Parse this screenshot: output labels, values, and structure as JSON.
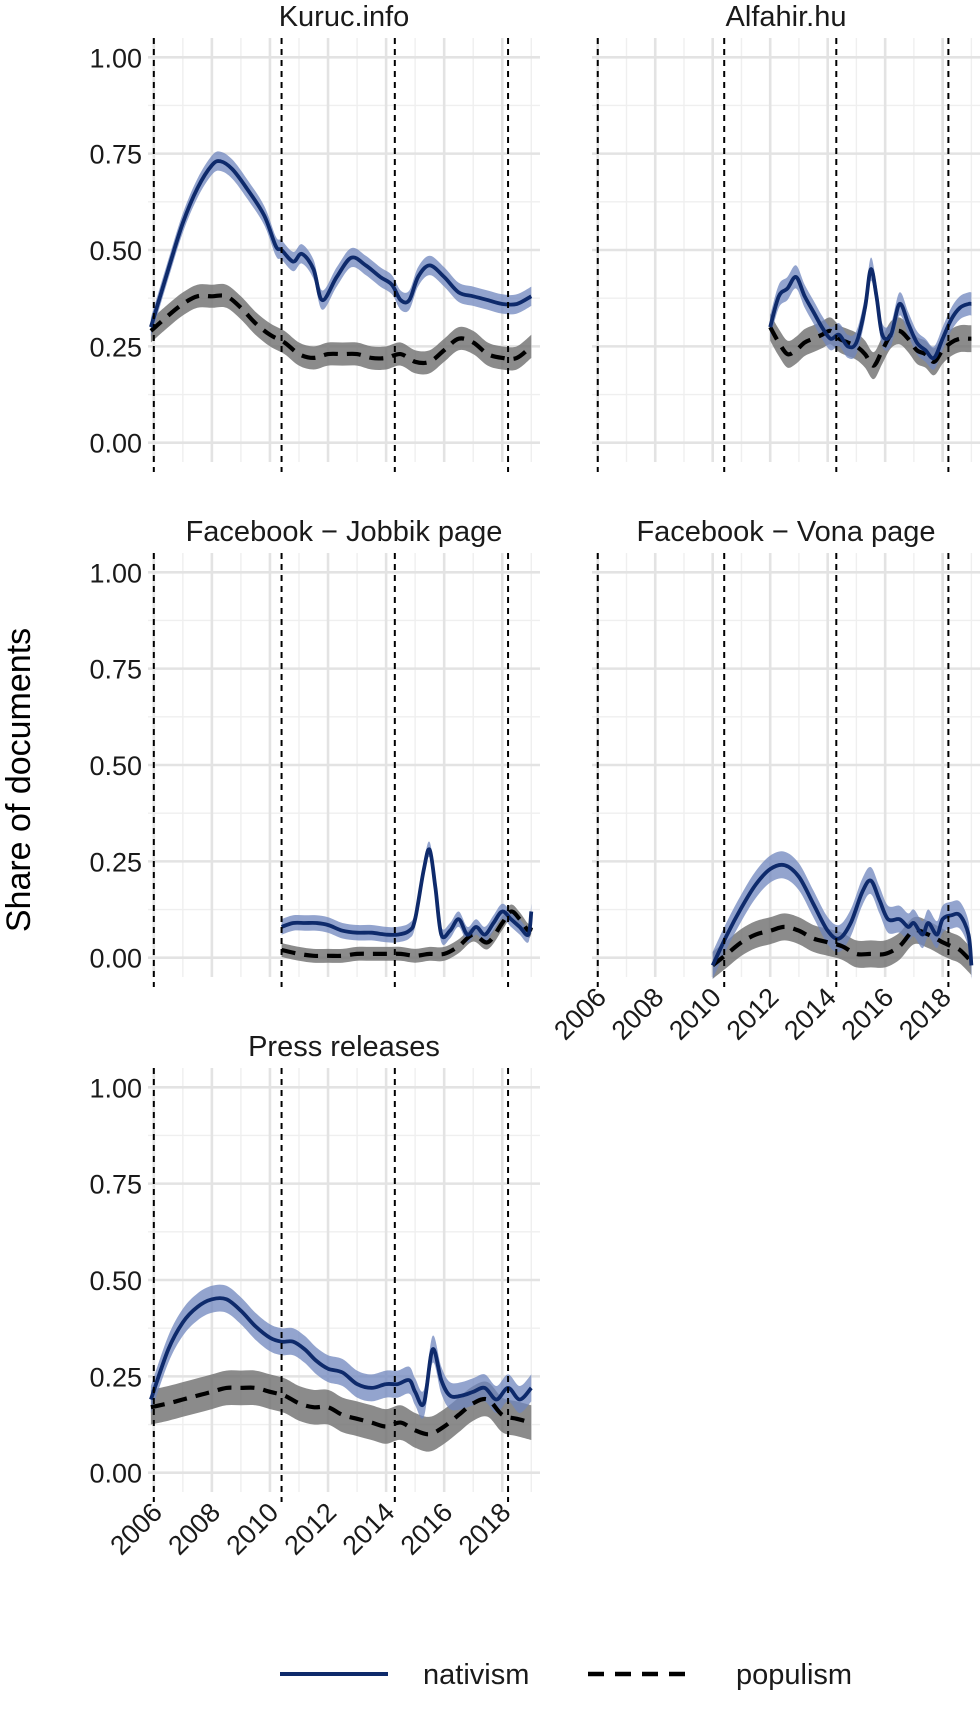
{
  "chart_data": {
    "type": "line",
    "ylabel": "Share of documents",
    "xlabel": "",
    "xlim": [
      2005.8,
      2019.3
    ],
    "ylim": [
      0,
      1.0
    ],
    "x_ticks": [
      "2006",
      "2008",
      "2010",
      "2012",
      "2014",
      "2016",
      "2018"
    ],
    "y_ticks": [
      "0.00",
      "0.25",
      "0.50",
      "0.75",
      "1.00"
    ],
    "reference_lines_x": [
      2006.0,
      2010.4,
      2014.3,
      2018.2
    ],
    "grid": true,
    "legend": {
      "position": "bottom",
      "items": [
        {
          "label": "nativism",
          "color": "#0e2a6b",
          "style": "solid"
        },
        {
          "label": "populism",
          "color": "#000000",
          "style": "dashed"
        }
      ]
    },
    "colors": {
      "nativism": "#0e2a6b",
      "nativism_band": "#6f86bd",
      "populism": "#000000",
      "populism_band": "#6e6e6e"
    },
    "panels": [
      {
        "title": "Kuruc.info",
        "series": [
          {
            "name": "nativism",
            "x": [
              2005.9,
              2006.5,
              2007.0,
              2007.5,
              2008.0,
              2008.3,
              2008.7,
              2009.2,
              2009.8,
              2010.2,
              2010.4,
              2010.8,
              2011.1,
              2011.5,
              2011.8,
              2012.3,
              2012.8,
              2013.3,
              2013.8,
              2014.2,
              2014.5,
              2014.8,
              2015.1,
              2015.5,
              2016.0,
              2016.5,
              2017.0,
              2017.5,
              2018.0,
              2018.5,
              2019.0
            ],
            "values": [
              0.3,
              0.45,
              0.57,
              0.66,
              0.72,
              0.73,
              0.71,
              0.66,
              0.59,
              0.51,
              0.5,
              0.47,
              0.49,
              0.45,
              0.37,
              0.43,
              0.48,
              0.46,
              0.43,
              0.41,
              0.37,
              0.37,
              0.43,
              0.46,
              0.43,
              0.39,
              0.38,
              0.37,
              0.36,
              0.36,
              0.38
            ],
            "band": 0.025
          },
          {
            "name": "populism",
            "x": [
              2005.9,
              2006.5,
              2007.0,
              2007.5,
              2008.0,
              2008.5,
              2009.0,
              2009.5,
              2010.0,
              2010.5,
              2011.0,
              2011.5,
              2012.0,
              2012.5,
              2013.0,
              2013.5,
              2014.0,
              2014.5,
              2015.0,
              2015.5,
              2016.0,
              2016.5,
              2017.0,
              2017.5,
              2018.0,
              2018.5,
              2019.0
            ],
            "values": [
              0.29,
              0.33,
              0.36,
              0.38,
              0.38,
              0.38,
              0.35,
              0.31,
              0.28,
              0.26,
              0.23,
              0.22,
              0.23,
              0.23,
              0.23,
              0.22,
              0.22,
              0.23,
              0.21,
              0.21,
              0.24,
              0.27,
              0.26,
              0.23,
              0.22,
              0.22,
              0.25
            ],
            "band": 0.03
          }
        ]
      },
      {
        "title": "Alfahir.hu",
        "series": [
          {
            "name": "nativism",
            "x": [
              2012.0,
              2012.3,
              2012.6,
              2012.9,
              2013.2,
              2013.5,
              2013.8,
              2014.1,
              2014.4,
              2014.7,
              2015.0,
              2015.3,
              2015.5,
              2015.7,
              2015.9,
              2016.2,
              2016.5,
              2016.8,
              2017.1,
              2017.4,
              2017.7,
              2018.0,
              2018.3,
              2018.6,
              2018.9,
              2019.0
            ],
            "values": [
              0.3,
              0.38,
              0.4,
              0.43,
              0.38,
              0.34,
              0.3,
              0.27,
              0.28,
              0.25,
              0.26,
              0.35,
              0.45,
              0.38,
              0.28,
              0.28,
              0.36,
              0.31,
              0.26,
              0.24,
              0.22,
              0.27,
              0.32,
              0.35,
              0.36,
              0.36
            ],
            "band": 0.03
          },
          {
            "name": "populism",
            "x": [
              2012.0,
              2012.3,
              2012.6,
              2012.9,
              2013.2,
              2013.5,
              2013.8,
              2014.1,
              2014.4,
              2014.7,
              2015.0,
              2015.3,
              2015.6,
              2015.9,
              2016.2,
              2016.5,
              2016.8,
              2017.1,
              2017.4,
              2017.7,
              2018.0,
              2018.3,
              2018.6,
              2018.9,
              2019.0
            ],
            "values": [
              0.3,
              0.26,
              0.23,
              0.24,
              0.26,
              0.27,
              0.28,
              0.29,
              0.27,
              0.26,
              0.25,
              0.23,
              0.2,
              0.24,
              0.28,
              0.29,
              0.27,
              0.24,
              0.23,
              0.21,
              0.24,
              0.26,
              0.27,
              0.27,
              0.27
            ],
            "band": 0.035
          }
        ]
      },
      {
        "title": "Facebook − Jobbik page",
        "series": [
          {
            "name": "nativism",
            "x": [
              2010.4,
              2010.8,
              2011.2,
              2011.6,
              2012.0,
              2012.5,
              2013.0,
              2013.5,
              2014.0,
              2014.4,
              2014.8,
              2015.0,
              2015.3,
              2015.5,
              2015.7,
              2015.9,
              2016.2,
              2016.5,
              2016.8,
              2017.1,
              2017.4,
              2017.7,
              2018.0,
              2018.3,
              2018.6,
              2018.9,
              2019.0
            ],
            "values": [
              0.08,
              0.09,
              0.09,
              0.09,
              0.085,
              0.07,
              0.065,
              0.065,
              0.06,
              0.06,
              0.07,
              0.1,
              0.23,
              0.28,
              0.18,
              0.06,
              0.07,
              0.1,
              0.06,
              0.08,
              0.06,
              0.09,
              0.12,
              0.1,
              0.08,
              0.06,
              0.12
            ],
            "band": 0.02
          },
          {
            "name": "populism",
            "x": [
              2010.4,
              2011.0,
              2011.5,
              2012.0,
              2012.5,
              2013.0,
              2013.5,
              2014.0,
              2014.5,
              2015.0,
              2015.5,
              2016.0,
              2016.5,
              2017.0,
              2017.5,
              2018.0,
              2018.3,
              2018.6,
              2018.9,
              2019.0
            ],
            "values": [
              0.02,
              0.01,
              0.005,
              0.005,
              0.005,
              0.01,
              0.01,
              0.01,
              0.01,
              0.005,
              0.01,
              0.01,
              0.03,
              0.06,
              0.04,
              0.09,
              0.12,
              0.1,
              0.07,
              0.08
            ],
            "band": 0.018
          }
        ]
      },
      {
        "title": "Facebook − Vona page",
        "series": [
          {
            "name": "nativism",
            "x": [
              2010.0,
              2010.5,
              2011.0,
              2011.5,
              2012.0,
              2012.5,
              2013.0,
              2013.5,
              2014.0,
              2014.4,
              2014.8,
              2015.2,
              2015.5,
              2015.8,
              2016.1,
              2016.5,
              2016.8,
              2017.0,
              2017.3,
              2017.5,
              2017.8,
              2018.0,
              2018.3,
              2018.6,
              2018.9,
              2019.0
            ],
            "values": [
              -0.02,
              0.06,
              0.13,
              0.19,
              0.23,
              0.24,
              0.21,
              0.14,
              0.07,
              0.05,
              0.09,
              0.17,
              0.2,
              0.15,
              0.1,
              0.1,
              0.08,
              0.09,
              0.06,
              0.09,
              0.06,
              0.1,
              0.11,
              0.11,
              0.06,
              -0.02
            ],
            "band": 0.035
          },
          {
            "name": "populism",
            "x": [
              2010.0,
              2010.5,
              2011.0,
              2011.5,
              2012.0,
              2012.5,
              2013.0,
              2013.5,
              2014.0,
              2014.5,
              2015.0,
              2015.5,
              2016.0,
              2016.5,
              2017.0,
              2017.5,
              2018.0,
              2018.3,
              2018.6,
              2019.0
            ],
            "values": [
              -0.02,
              0.01,
              0.04,
              0.06,
              0.07,
              0.08,
              0.07,
              0.05,
              0.04,
              0.03,
              0.01,
              0.01,
              0.01,
              0.03,
              0.07,
              0.06,
              0.04,
              0.03,
              0.02,
              -0.01
            ],
            "band": 0.035
          }
        ]
      },
      {
        "title": "Press releases",
        "series": [
          {
            "name": "nativism",
            "x": [
              2005.9,
              2006.5,
              2007.0,
              2007.5,
              2008.0,
              2008.5,
              2009.0,
              2009.5,
              2010.0,
              2010.4,
              2010.8,
              2011.2,
              2011.6,
              2012.0,
              2012.5,
              2013.0,
              2013.5,
              2014.0,
              2014.4,
              2014.8,
              2015.0,
              2015.3,
              2015.6,
              2015.9,
              2016.2,
              2016.6,
              2017.0,
              2017.4,
              2017.8,
              2018.2,
              2018.6,
              2019.0
            ],
            "values": [
              0.19,
              0.32,
              0.39,
              0.43,
              0.45,
              0.45,
              0.42,
              0.38,
              0.35,
              0.34,
              0.34,
              0.32,
              0.29,
              0.27,
              0.26,
              0.23,
              0.22,
              0.23,
              0.23,
              0.24,
              0.21,
              0.18,
              0.32,
              0.24,
              0.2,
              0.2,
              0.21,
              0.22,
              0.19,
              0.22,
              0.19,
              0.22
            ],
            "band": 0.035
          },
          {
            "name": "populism",
            "x": [
              2005.9,
              2006.5,
              2007.0,
              2007.5,
              2008.0,
              2008.5,
              2009.0,
              2009.5,
              2010.0,
              2010.5,
              2011.0,
              2011.5,
              2012.0,
              2012.5,
              2013.0,
              2013.5,
              2014.0,
              2014.5,
              2015.0,
              2015.5,
              2016.0,
              2016.5,
              2017.0,
              2017.5,
              2018.0,
              2018.5,
              2019.0
            ],
            "values": [
              0.17,
              0.18,
              0.19,
              0.2,
              0.21,
              0.22,
              0.22,
              0.22,
              0.21,
              0.2,
              0.18,
              0.17,
              0.17,
              0.15,
              0.14,
              0.13,
              0.12,
              0.13,
              0.11,
              0.1,
              0.12,
              0.15,
              0.18,
              0.19,
              0.15,
              0.14,
              0.13
            ],
            "band": 0.045
          }
        ]
      }
    ]
  }
}
